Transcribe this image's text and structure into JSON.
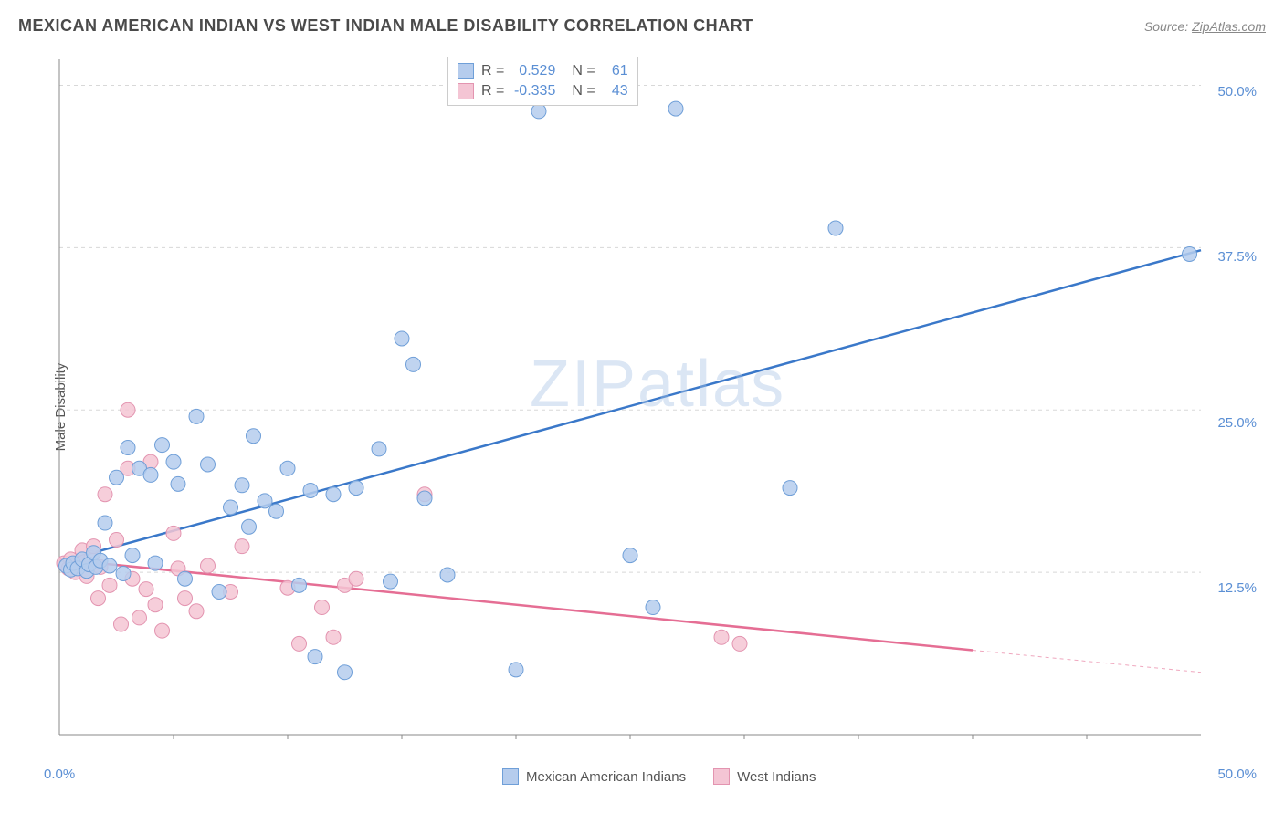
{
  "header": {
    "title": "MEXICAN AMERICAN INDIAN VS WEST INDIAN MALE DISABILITY CORRELATION CHART",
    "source_prefix": "Source: ",
    "source_link": "ZipAtlas.com"
  },
  "chart": {
    "type": "scatter",
    "background_color": "#ffffff",
    "grid_color": "#d8d8d8",
    "axis_color": "#888888",
    "tick_label_color": "#5b8fd4",
    "ylabel": "Male Disability",
    "xlim": [
      0,
      50
    ],
    "ylim": [
      0,
      52
    ],
    "xticks": [
      "0.0%",
      "50.0%"
    ],
    "yticks": [
      {
        "v": 12.5,
        "label": "12.5%"
      },
      {
        "v": 25.0,
        "label": "25.0%"
      },
      {
        "v": 37.5,
        "label": "37.5%"
      },
      {
        "v": 50.0,
        "label": "50.0%"
      }
    ],
    "x_minor_ticks": [
      5,
      10,
      15,
      20,
      25,
      30,
      35,
      40,
      45
    ],
    "marker_radius": 8,
    "marker_stroke_width": 1,
    "line_width": 2.5,
    "watermark": "ZIPatlas",
    "series": [
      {
        "name": "Mexican American Indians",
        "fill_color": "#b5cced",
        "stroke_color": "#6f9fd8",
        "line_color": "#3a78c9",
        "R": "0.529",
        "N": "61",
        "regression": {
          "x1": 0,
          "y1": 13.3,
          "x2": 50,
          "y2": 37.3,
          "dash_after_x": 50
        },
        "points": [
          [
            0.3,
            13.0
          ],
          [
            0.5,
            12.7
          ],
          [
            0.6,
            13.2
          ],
          [
            0.8,
            12.8
          ],
          [
            1.0,
            13.5
          ],
          [
            1.2,
            12.6
          ],
          [
            1.3,
            13.1
          ],
          [
            1.5,
            14.0
          ],
          [
            1.6,
            12.9
          ],
          [
            1.8,
            13.4
          ],
          [
            2.0,
            16.3
          ],
          [
            2.2,
            13.0
          ],
          [
            2.5,
            19.8
          ],
          [
            2.8,
            12.4
          ],
          [
            3.0,
            22.1
          ],
          [
            3.2,
            13.8
          ],
          [
            3.5,
            20.5
          ],
          [
            4.0,
            20.0
          ],
          [
            4.2,
            13.2
          ],
          [
            4.5,
            22.3
          ],
          [
            5.0,
            21.0
          ],
          [
            5.2,
            19.3
          ],
          [
            5.5,
            12.0
          ],
          [
            6.0,
            24.5
          ],
          [
            6.5,
            20.8
          ],
          [
            7.0,
            11.0
          ],
          [
            7.5,
            17.5
          ],
          [
            8.0,
            19.2
          ],
          [
            8.3,
            16.0
          ],
          [
            8.5,
            23.0
          ],
          [
            9.0,
            18.0
          ],
          [
            9.5,
            17.2
          ],
          [
            10.0,
            20.5
          ],
          [
            10.5,
            11.5
          ],
          [
            11.0,
            18.8
          ],
          [
            11.2,
            6.0
          ],
          [
            12.0,
            18.5
          ],
          [
            12.5,
            4.8
          ],
          [
            13.0,
            19.0
          ],
          [
            14.0,
            22.0
          ],
          [
            14.5,
            11.8
          ],
          [
            15.0,
            30.5
          ],
          [
            15.5,
            28.5
          ],
          [
            16.0,
            18.2
          ],
          [
            17.0,
            12.3
          ],
          [
            20.0,
            5.0
          ],
          [
            21.0,
            48.0
          ],
          [
            25.0,
            13.8
          ],
          [
            26.0,
            9.8
          ],
          [
            27.0,
            48.2
          ],
          [
            32.0,
            19.0
          ],
          [
            34.0,
            39.0
          ],
          [
            49.5,
            37.0
          ]
        ]
      },
      {
        "name": "West Indians",
        "fill_color": "#f4c5d4",
        "stroke_color": "#e394b0",
        "line_color": "#e56e94",
        "R": "-0.335",
        "N": "43",
        "regression": {
          "x1": 0,
          "y1": 13.5,
          "x2": 40,
          "y2": 6.5,
          "dash_after_x": 40,
          "dash_x2": 50,
          "dash_y2": 4.8
        },
        "points": [
          [
            0.2,
            13.2
          ],
          [
            0.4,
            12.8
          ],
          [
            0.5,
            13.5
          ],
          [
            0.7,
            12.5
          ],
          [
            0.9,
            13.0
          ],
          [
            1.0,
            14.2
          ],
          [
            1.1,
            13.3
          ],
          [
            1.2,
            12.2
          ],
          [
            1.4,
            13.6
          ],
          [
            1.5,
            14.5
          ],
          [
            1.7,
            10.5
          ],
          [
            1.8,
            12.9
          ],
          [
            2.0,
            18.5
          ],
          [
            2.2,
            11.5
          ],
          [
            2.5,
            15.0
          ],
          [
            2.7,
            8.5
          ],
          [
            3.0,
            25.0
          ],
          [
            3.0,
            20.5
          ],
          [
            3.2,
            12.0
          ],
          [
            3.5,
            9.0
          ],
          [
            3.8,
            11.2
          ],
          [
            4.0,
            21.0
          ],
          [
            4.2,
            10.0
          ],
          [
            4.5,
            8.0
          ],
          [
            5.0,
            15.5
          ],
          [
            5.2,
            12.8
          ],
          [
            5.5,
            10.5
          ],
          [
            6.0,
            9.5
          ],
          [
            6.5,
            13.0
          ],
          [
            7.5,
            11.0
          ],
          [
            8.0,
            14.5
          ],
          [
            10.0,
            11.3
          ],
          [
            10.5,
            7.0
          ],
          [
            11.5,
            9.8
          ],
          [
            12.0,
            7.5
          ],
          [
            12.5,
            11.5
          ],
          [
            13.0,
            12.0
          ],
          [
            16.0,
            18.5
          ],
          [
            29.0,
            7.5
          ],
          [
            29.8,
            7.0
          ]
        ]
      }
    ],
    "bottom_legend": [
      {
        "swatch_fill": "#b5cced",
        "swatch_stroke": "#6f9fd8",
        "label": "Mexican American Indians"
      },
      {
        "swatch_fill": "#f4c5d4",
        "swatch_stroke": "#e394b0",
        "label": "West Indians"
      }
    ]
  }
}
